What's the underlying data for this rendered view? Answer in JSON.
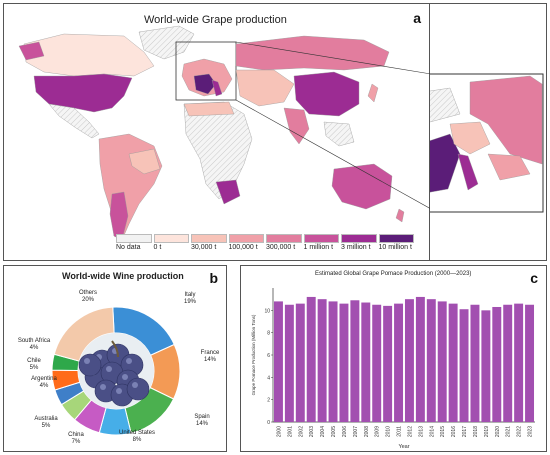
{
  "map_panel": {
    "label": "a",
    "title": "World-wide Grape production",
    "legend": [
      "No data",
      "0 t",
      "30,000 t",
      "100,000 t",
      "300,000 t",
      "1 million t",
      "3 million t",
      "10 million t"
    ],
    "legend_colors": [
      "#f2f2f2",
      "#fde4dc",
      "#f7c3b8",
      "#f0a0a8",
      "#e27d9e",
      "#c8529b",
      "#9c2c93",
      "#5b1d78"
    ]
  },
  "chart_data": [
    {
      "type": "pie",
      "title": "World-wide Wine production",
      "categories": [
        "Italy",
        "France",
        "Spain",
        "United States",
        "China",
        "Australia",
        "Argentina",
        "Chile",
        "South Africa",
        "Others"
      ],
      "values": [
        19,
        14,
        14,
        8,
        7,
        5,
        4,
        5,
        4,
        20
      ],
      "labels": [
        "19%",
        "14%",
        "14%",
        "8%",
        "7%",
        "5%",
        "4%",
        "5%",
        "4%",
        "20%"
      ],
      "colors": [
        "#3b8fd6",
        "#f39a55",
        "#4bb04f",
        "#46aee8",
        "#c65bc4",
        "#a7d67a",
        "#3f7fc8",
        "#ff6b1a",
        "#2ea84a",
        "#f3c9aa"
      ]
    },
    {
      "type": "bar",
      "title": "Estimated Global Grape Pomace Production (2000—2023)",
      "xlabel": "Year",
      "ylabel": "Grape Pomace Production (Million Tons)",
      "ylim": [
        0,
        12
      ],
      "yticks": [
        0,
        2,
        4,
        6,
        8,
        10
      ],
      "categories": [
        "2000",
        "2001",
        "2002",
        "2003",
        "2004",
        "2005",
        "2006",
        "2007",
        "2008",
        "2009",
        "2010",
        "2011",
        "2012",
        "2013",
        "2014",
        "2015",
        "2016",
        "2017",
        "2018",
        "2019",
        "2020",
        "2021",
        "2022",
        "2023"
      ],
      "values": [
        10.8,
        10.5,
        10.6,
        11.2,
        11.0,
        10.8,
        10.6,
        10.9,
        10.7,
        10.5,
        10.4,
        10.6,
        11.0,
        11.2,
        11.0,
        10.8,
        10.6,
        10.1,
        10.5,
        10.0,
        10.3,
        10.5,
        10.6,
        10.5
      ],
      "color": "#a24fb0",
      "label": "c"
    }
  ],
  "pie_panel": {
    "label": "b"
  }
}
